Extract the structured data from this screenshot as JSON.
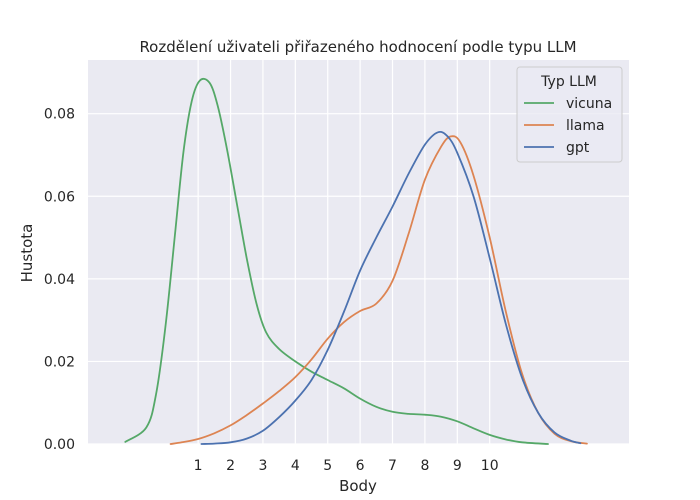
{
  "chart_data": {
    "type": "line",
    "title": "Rozdělení uživateli přiřazeného hodnocení podle typu LLM",
    "xlabel": "Body",
    "ylabel": "Hustota",
    "xlim": [
      -2.4,
      14.3
    ],
    "ylim": [
      0,
      0.093
    ],
    "x_ticks": [
      1,
      2,
      3,
      4,
      5,
      6,
      7,
      8,
      9,
      10
    ],
    "y_ticks": [
      0.0,
      0.02,
      0.04,
      0.06,
      0.08
    ],
    "y_tick_labels": [
      "0.00",
      "0.02",
      "0.04",
      "0.06",
      "0.08"
    ],
    "grid": true,
    "legend_title": "Typ LLM",
    "legend_position": "top-right",
    "series": [
      {
        "name": "vicuna",
        "color": "#55a868",
        "points": [
          [
            -1.25,
            0.0005
          ],
          [
            -0.6,
            0.004
          ],
          [
            -0.3,
            0.012
          ],
          [
            0,
            0.029
          ],
          [
            0.3,
            0.052
          ],
          [
            0.55,
            0.071
          ],
          [
            0.8,
            0.083
          ],
          [
            1.05,
            0.088
          ],
          [
            1.35,
            0.0875
          ],
          [
            1.6,
            0.082
          ],
          [
            1.9,
            0.071
          ],
          [
            2.2,
            0.058
          ],
          [
            2.5,
            0.045
          ],
          [
            2.8,
            0.034
          ],
          [
            3.1,
            0.027
          ],
          [
            3.5,
            0.023
          ],
          [
            4.0,
            0.02
          ],
          [
            4.5,
            0.0175
          ],
          [
            5.0,
            0.0155
          ],
          [
            5.5,
            0.0135
          ],
          [
            6.0,
            0.011
          ],
          [
            6.5,
            0.009
          ],
          [
            7.0,
            0.0078
          ],
          [
            7.5,
            0.0073
          ],
          [
            8.0,
            0.0071
          ],
          [
            8.5,
            0.0066
          ],
          [
            9.0,
            0.0055
          ],
          [
            9.5,
            0.0038
          ],
          [
            10.0,
            0.0022
          ],
          [
            10.5,
            0.0011
          ],
          [
            11.0,
            0.0004
          ],
          [
            11.8,
            0.0
          ]
        ]
      },
      {
        "name": "llama",
        "color": "#dd8452",
        "points": [
          [
            0.15,
            0.0
          ],
          [
            0.5,
            0.0004
          ],
          [
            1.0,
            0.0012
          ],
          [
            1.5,
            0.0026
          ],
          [
            2.0,
            0.0045
          ],
          [
            2.5,
            0.007
          ],
          [
            3.0,
            0.0098
          ],
          [
            3.5,
            0.0128
          ],
          [
            4.0,
            0.0162
          ],
          [
            4.5,
            0.0205
          ],
          [
            5.0,
            0.0255
          ],
          [
            5.5,
            0.0295
          ],
          [
            6.0,
            0.0322
          ],
          [
            6.5,
            0.034
          ],
          [
            7.0,
            0.0395
          ],
          [
            7.5,
            0.051
          ],
          [
            8.0,
            0.064
          ],
          [
            8.5,
            0.072
          ],
          [
            8.8,
            0.0745
          ],
          [
            9.1,
            0.073
          ],
          [
            9.5,
            0.065
          ],
          [
            10.0,
            0.05
          ],
          [
            10.5,
            0.032
          ],
          [
            11.0,
            0.017
          ],
          [
            11.5,
            0.0075
          ],
          [
            12.0,
            0.0025
          ],
          [
            12.5,
            0.0007
          ],
          [
            13.0,
            0.0001
          ]
        ]
      },
      {
        "name": "gpt",
        "color": "#4c72b0",
        "points": [
          [
            1.1,
            0.0
          ],
          [
            1.5,
            0.0001
          ],
          [
            2.0,
            0.0004
          ],
          [
            2.5,
            0.0013
          ],
          [
            3.0,
            0.0032
          ],
          [
            3.5,
            0.0065
          ],
          [
            4.0,
            0.0105
          ],
          [
            4.5,
            0.0155
          ],
          [
            5.0,
            0.0228
          ],
          [
            5.5,
            0.032
          ],
          [
            6.0,
            0.042
          ],
          [
            6.5,
            0.05
          ],
          [
            7.0,
            0.0575
          ],
          [
            7.5,
            0.0655
          ],
          [
            8.0,
            0.0725
          ],
          [
            8.4,
            0.0755
          ],
          [
            8.7,
            0.0745
          ],
          [
            9.0,
            0.0705
          ],
          [
            9.5,
            0.06
          ],
          [
            10.0,
            0.045
          ],
          [
            10.5,
            0.029
          ],
          [
            11.0,
            0.016
          ],
          [
            11.5,
            0.0075
          ],
          [
            12.0,
            0.0028
          ],
          [
            12.5,
            0.0008
          ],
          [
            12.8,
            0.0002
          ]
        ]
      }
    ]
  }
}
